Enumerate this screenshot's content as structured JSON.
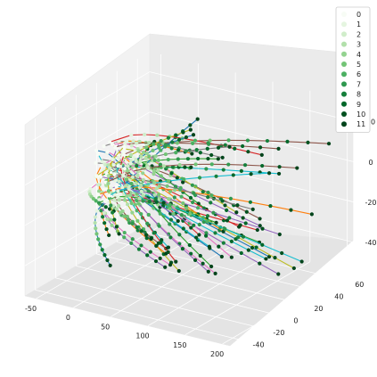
{
  "chart_data": {
    "type": "line",
    "projection": "3d",
    "grid": true,
    "legend_placement": "top-right",
    "xlim": [
      -65,
      210
    ],
    "ylim": [
      -50,
      72
    ],
    "zlim": [
      -55,
      30
    ],
    "x_ticks": [
      "-50",
      "0",
      "50",
      "100",
      "150",
      "200"
    ],
    "y_ticks": [
      "-40",
      "-20",
      "0",
      "20",
      "40",
      "60"
    ],
    "z_ticks": [
      "-40",
      "-20",
      "0",
      "20"
    ],
    "legend": {
      "labels": [
        "0",
        "1",
        "2",
        "3",
        "4",
        "5",
        "6",
        "7",
        "8",
        "9",
        "10",
        "11"
      ],
      "colors": [
        "#f7fcf5",
        "#e5f5e0",
        "#d0edca",
        "#b2e0ab",
        "#94d390",
        "#73c476",
        "#4bb062",
        "#2f984f",
        "#157f3b",
        "#006729",
        "#00511f",
        "#00441b"
      ]
    },
    "line_colors": [
      "#1f77b4",
      "#ff7f0e",
      "#2ca02c",
      "#d62728",
      "#9467bd",
      "#8c564b",
      "#e377c2",
      "#7f7f7f",
      "#bcbd22",
      "#17becf"
    ],
    "n_trajectories": 60,
    "n_points_per_trajectory": 12,
    "series_note_values": {
      "start_x": -25,
      "end_x_range": [
        10,
        195
      ],
      "y_range": [
        -40,
        70
      ],
      "z_range": [
        -50,
        20
      ]
    }
  }
}
